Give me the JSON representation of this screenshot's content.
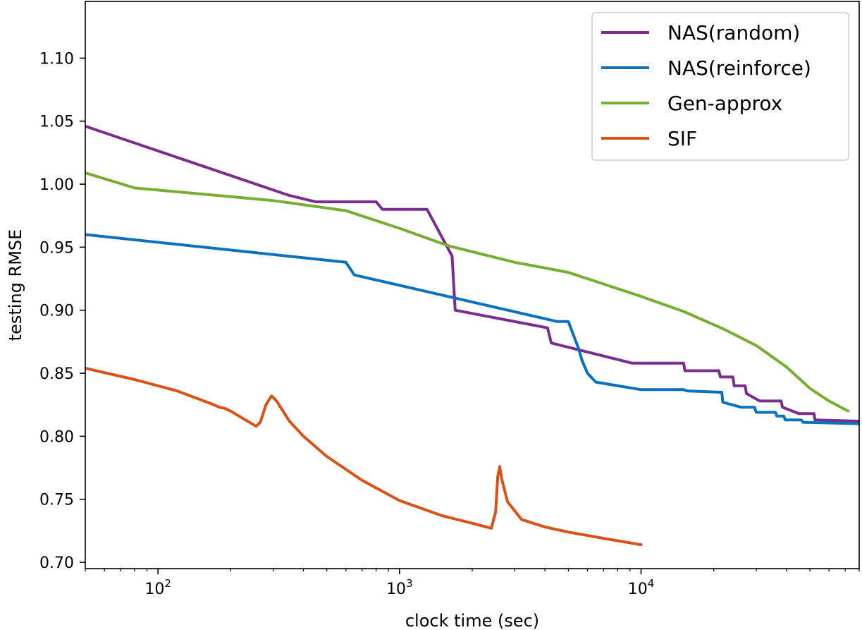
{
  "chart_data": {
    "type": "line",
    "title": "",
    "xlabel": "clock time (sec)",
    "ylabel": "testing RMSE",
    "xscale": "log",
    "xlim": [
      50,
      80000
    ],
    "ylim": [
      0.695,
      1.145
    ],
    "grid": false,
    "legend_position": "top-right",
    "y_ticks": [
      0.7,
      0.75,
      0.8,
      0.85,
      0.9,
      0.95,
      1.0,
      1.05,
      1.1
    ],
    "y_tick_labels": [
      "0.70",
      "0.75",
      "0.80",
      "0.85",
      "0.90",
      "0.95",
      "1.00",
      "1.05",
      "1.10"
    ],
    "x_major_ticks": [
      {
        "value": 100,
        "base": "10",
        "exp": "2"
      },
      {
        "value": 1000,
        "base": "10",
        "exp": "3"
      },
      {
        "value": 10000,
        "base": "10",
        "exp": "4"
      }
    ],
    "series": [
      {
        "name": "NAS(random)",
        "color": "#7b2d8e",
        "points": [
          [
            50,
            1.046
          ],
          [
            350,
            0.991
          ],
          [
            450,
            0.986
          ],
          [
            800,
            0.986
          ],
          [
            850,
            0.98
          ],
          [
            1300,
            0.98
          ],
          [
            1650,
            0.943
          ],
          [
            1700,
            0.9
          ],
          [
            4100,
            0.886
          ],
          [
            4250,
            0.874
          ],
          [
            9200,
            0.858
          ],
          [
            15000,
            0.858
          ],
          [
            15200,
            0.852
          ],
          [
            21000,
            0.852
          ],
          [
            21300,
            0.847
          ],
          [
            24000,
            0.847
          ],
          [
            24300,
            0.84
          ],
          [
            27000,
            0.84
          ],
          [
            27300,
            0.834
          ],
          [
            31000,
            0.828
          ],
          [
            38000,
            0.828
          ],
          [
            38500,
            0.823
          ],
          [
            45000,
            0.818
          ],
          [
            52000,
            0.818
          ],
          [
            52500,
            0.813
          ],
          [
            80000,
            0.812
          ]
        ]
      },
      {
        "name": "NAS(reinforce)",
        "color": "#0a72bd",
        "points": [
          [
            50,
            0.96
          ],
          [
            600,
            0.938
          ],
          [
            650,
            0.928
          ],
          [
            4500,
            0.891
          ],
          [
            5000,
            0.891
          ],
          [
            5500,
            0.87
          ],
          [
            5700,
            0.86
          ],
          [
            6000,
            0.85
          ],
          [
            6500,
            0.843
          ],
          [
            10000,
            0.837
          ],
          [
            15000,
            0.837
          ],
          [
            15500,
            0.836
          ],
          [
            21000,
            0.835
          ],
          [
            21600,
            0.835
          ],
          [
            21800,
            0.827
          ],
          [
            26000,
            0.823
          ],
          [
            29500,
            0.823
          ],
          [
            30000,
            0.819
          ],
          [
            36000,
            0.819
          ],
          [
            36500,
            0.816
          ],
          [
            39000,
            0.816
          ],
          [
            39500,
            0.813
          ],
          [
            46000,
            0.813
          ],
          [
            47000,
            0.811
          ],
          [
            80000,
            0.81
          ]
        ]
      },
      {
        "name": "Gen-approx",
        "color": "#77ad32",
        "points": [
          [
            50,
            1.009
          ],
          [
            80,
            0.997
          ],
          [
            300,
            0.987
          ],
          [
            600,
            0.979
          ],
          [
            1000,
            0.965
          ],
          [
            1600,
            0.951
          ],
          [
            3000,
            0.938
          ],
          [
            5000,
            0.93
          ],
          [
            10000,
            0.911
          ],
          [
            15000,
            0.899
          ],
          [
            22000,
            0.885
          ],
          [
            30000,
            0.872
          ],
          [
            40000,
            0.855
          ],
          [
            50000,
            0.838
          ],
          [
            60000,
            0.828
          ],
          [
            72000,
            0.82
          ]
        ]
      },
      {
        "name": "SIF",
        "color": "#d95319",
        "points": [
          [
            50,
            0.854
          ],
          [
            80,
            0.845
          ],
          [
            120,
            0.836
          ],
          [
            165,
            0.826
          ],
          [
            180,
            0.823
          ],
          [
            190,
            0.822
          ],
          [
            200,
            0.82
          ],
          [
            230,
            0.813
          ],
          [
            255,
            0.808
          ],
          [
            265,
            0.811
          ],
          [
            280,
            0.825
          ],
          [
            295,
            0.832
          ],
          [
            310,
            0.828
          ],
          [
            350,
            0.812
          ],
          [
            400,
            0.8
          ],
          [
            500,
            0.784
          ],
          [
            700,
            0.765
          ],
          [
            1000,
            0.749
          ],
          [
            1500,
            0.737
          ],
          [
            2000,
            0.731
          ],
          [
            2400,
            0.727
          ],
          [
            2500,
            0.74
          ],
          [
            2550,
            0.768
          ],
          [
            2600,
            0.776
          ],
          [
            2650,
            0.766
          ],
          [
            2800,
            0.748
          ],
          [
            3200,
            0.734
          ],
          [
            4000,
            0.728
          ],
          [
            5000,
            0.724
          ],
          [
            7000,
            0.719
          ],
          [
            10000,
            0.714
          ]
        ]
      }
    ]
  }
}
